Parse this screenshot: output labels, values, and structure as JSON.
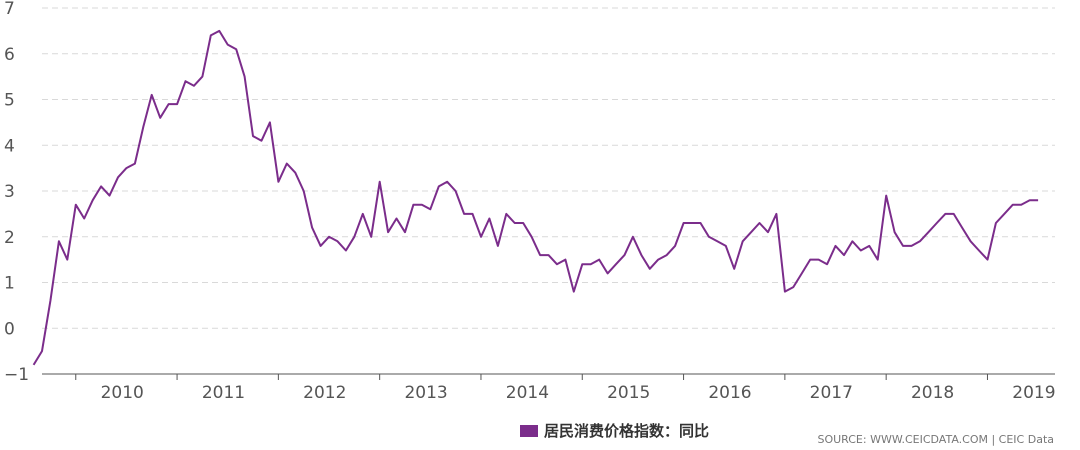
{
  "chart_data": {
    "type": "line",
    "ylim": [
      -1,
      7
    ],
    "yticks": [
      "−1",
      "0",
      "1",
      "2",
      "3",
      "4",
      "5",
      "6",
      "7"
    ],
    "xlim": [
      "2009-09",
      "2019-09"
    ],
    "xtick_labels": [
      "2010",
      "2011",
      "2012",
      "2013",
      "2014",
      "2015",
      "2016",
      "2017",
      "2018",
      "2019"
    ],
    "grid": true,
    "legend_position": "bottom-center",
    "series": [
      {
        "name": "居民消费价格指数：同比",
        "color": "#7b2d8b",
        "start": "2009-08",
        "frequency": "monthly",
        "values": [
          -0.8,
          -0.5,
          0.6,
          1.9,
          1.5,
          2.7,
          2.4,
          2.8,
          3.1,
          2.9,
          3.3,
          3.5,
          3.6,
          4.4,
          5.1,
          4.6,
          4.9,
          4.9,
          5.4,
          5.3,
          5.5,
          6.4,
          6.5,
          6.2,
          6.1,
          5.5,
          4.2,
          4.1,
          4.5,
          3.2,
          3.6,
          3.4,
          3.0,
          2.2,
          1.8,
          2.0,
          1.9,
          1.7,
          2.0,
          2.5,
          2.0,
          3.2,
          2.1,
          2.4,
          2.1,
          2.7,
          2.7,
          2.6,
          3.1,
          3.2,
          3.0,
          2.5,
          2.5,
          2.0,
          2.4,
          1.8,
          2.5,
          2.3,
          2.3,
          2.0,
          1.6,
          1.6,
          1.4,
          1.5,
          0.8,
          1.4,
          1.4,
          1.5,
          1.2,
          1.4,
          1.6,
          2.0,
          1.6,
          1.3,
          1.5,
          1.6,
          1.8,
          2.3,
          2.3,
          2.3,
          2.0,
          1.9,
          1.8,
          1.3,
          1.9,
          2.1,
          2.3,
          2.1,
          2.5,
          0.8,
          0.9,
          1.2,
          1.5,
          1.5,
          1.4,
          1.8,
          1.6,
          1.9,
          1.7,
          1.8,
          1.5,
          2.9,
          2.1,
          1.8,
          1.8,
          1.9,
          2.1,
          2.3,
          2.5,
          2.5,
          2.2,
          1.9,
          1.7,
          1.5,
          2.3,
          2.5,
          2.7,
          2.7,
          2.8,
          2.8
        ]
      }
    ]
  },
  "legend": {
    "label": "居民消费价格指数：同比",
    "color": "#7b2d8b"
  },
  "source": "SOURCE: WWW.CEICDATA.COM | CEIC Data"
}
